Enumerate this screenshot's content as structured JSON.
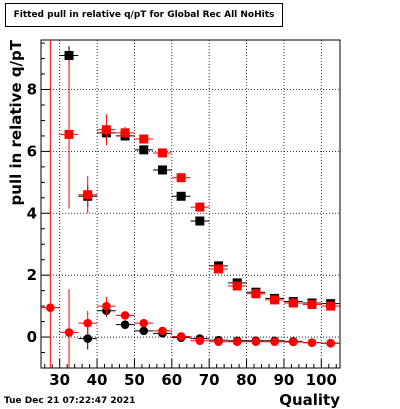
{
  "title": "Fitted pull in relative q/pT  for Global Rec All NoHits",
  "date": "Tue Dec 21 07:22:47 2021",
  "colors": {
    "black_series": "#000000",
    "red_series": "#ff0000",
    "grid": "#000000"
  },
  "chart_data": {
    "type": "scatter",
    "xlabel": "Quality",
    "ylabel": "pull in relative q/pT",
    "xlim": [
      25,
      105
    ],
    "ylim": [
      -1.0,
      9.6
    ],
    "x_ticks": [
      30,
      40,
      50,
      60,
      70,
      80,
      90,
      100
    ],
    "y_ticks": [
      0,
      2,
      4,
      6,
      8
    ],
    "grid": true,
    "marker_groups": [
      {
        "marker": "square",
        "color": "#000000",
        "points": [
          {
            "x": 32.5,
            "y": 9.1,
            "err": 0.3
          },
          {
            "x": 37.5,
            "y": 4.55,
            "err": 0.35
          },
          {
            "x": 42.5,
            "y": 6.6,
            "err": 0.25
          },
          {
            "x": 47.5,
            "y": 6.5,
            "err": 0.15
          },
          {
            "x": 52.5,
            "y": 6.05,
            "err": 0.1
          },
          {
            "x": 57.5,
            "y": 5.4,
            "err": 0.1
          },
          {
            "x": 62.5,
            "y": 4.55,
            "err": 0.1
          },
          {
            "x": 67.5,
            "y": 3.75,
            "err": 0.1
          },
          {
            "x": 72.5,
            "y": 2.3,
            "err": 0.08
          },
          {
            "x": 77.5,
            "y": 1.75,
            "err": 0.06
          },
          {
            "x": 82.5,
            "y": 1.45,
            "err": 0.05
          },
          {
            "x": 87.5,
            "y": 1.25,
            "err": 0.05
          },
          {
            "x": 92.5,
            "y": 1.15,
            "err": 0.05
          },
          {
            "x": 97.5,
            "y": 1.1,
            "err": 0.05
          },
          {
            "x": 102.5,
            "y": 1.08,
            "err": 0.05
          }
        ]
      },
      {
        "marker": "square",
        "color": "#ff0000",
        "points": [
          {
            "x": 32.5,
            "y": 6.55,
            "err": 2.4
          },
          {
            "x": 37.5,
            "y": 4.6,
            "err": 0.6
          },
          {
            "x": 42.5,
            "y": 6.7,
            "err": 0.5
          },
          {
            "x": 47.5,
            "y": 6.6,
            "err": 0.2
          },
          {
            "x": 52.5,
            "y": 6.4,
            "err": 0.12
          },
          {
            "x": 57.5,
            "y": 5.95,
            "err": 0.1
          },
          {
            "x": 62.5,
            "y": 5.15,
            "err": 0.1
          },
          {
            "x": 67.5,
            "y": 4.2,
            "err": 0.1
          },
          {
            "x": 72.5,
            "y": 2.2,
            "err": 0.08
          },
          {
            "x": 77.5,
            "y": 1.65,
            "err": 0.06
          },
          {
            "x": 82.5,
            "y": 1.4,
            "err": 0.05
          },
          {
            "x": 87.5,
            "y": 1.2,
            "err": 0.05
          },
          {
            "x": 92.5,
            "y": 1.1,
            "err": 0.05
          },
          {
            "x": 97.5,
            "y": 1.05,
            "err": 0.05
          },
          {
            "x": 102.5,
            "y": 1.0,
            "err": 0.05
          }
        ]
      },
      {
        "marker": "circle",
        "color": "#000000",
        "points": [
          {
            "x": 37.5,
            "y": -0.05,
            "err": 0.35
          },
          {
            "x": 42.5,
            "y": 0.85,
            "err": 0.2
          },
          {
            "x": 47.5,
            "y": 0.4,
            "err": 0.1
          },
          {
            "x": 52.5,
            "y": 0.2,
            "err": 0.06
          },
          {
            "x": 57.5,
            "y": 0.12,
            "err": 0.05
          },
          {
            "x": 62.5,
            "y": -0.02,
            "err": 0.04
          },
          {
            "x": 67.5,
            "y": -0.05,
            "err": 0.04
          },
          {
            "x": 72.5,
            "y": -0.1,
            "err": 0.03
          },
          {
            "x": 77.5,
            "y": -0.12,
            "err": 0.03
          },
          {
            "x": 82.5,
            "y": -0.12,
            "err": 0.03
          },
          {
            "x": 87.5,
            "y": -0.12,
            "err": 0.03
          },
          {
            "x": 92.5,
            "y": -0.14,
            "err": 0.03
          },
          {
            "x": 97.5,
            "y": -0.18,
            "err": 0.03
          },
          {
            "x": 102.5,
            "y": -0.2,
            "err": 0.03
          }
        ]
      },
      {
        "marker": "circle",
        "color": "#ff0000",
        "points": [
          {
            "x": 27.5,
            "y": 0.95,
            "err": 9.6
          },
          {
            "x": 32.5,
            "y": 0.15,
            "err": 1.4
          },
          {
            "x": 37.5,
            "y": 0.45,
            "err": 0.4
          },
          {
            "x": 42.5,
            "y": 1.0,
            "err": 0.3
          },
          {
            "x": 47.5,
            "y": 0.7,
            "err": 0.1
          },
          {
            "x": 52.5,
            "y": 0.45,
            "err": 0.06
          },
          {
            "x": 57.5,
            "y": 0.2,
            "err": 0.05
          },
          {
            "x": 62.5,
            "y": 0.02,
            "err": 0.04
          },
          {
            "x": 67.5,
            "y": -0.12,
            "err": 0.04
          },
          {
            "x": 72.5,
            "y": -0.15,
            "err": 0.03
          },
          {
            "x": 77.5,
            "y": -0.15,
            "err": 0.03
          },
          {
            "x": 82.5,
            "y": -0.15,
            "err": 0.03
          },
          {
            "x": 87.5,
            "y": -0.15,
            "err": 0.03
          },
          {
            "x": 92.5,
            "y": -0.16,
            "err": 0.03
          },
          {
            "x": 97.5,
            "y": -0.18,
            "err": 0.03
          },
          {
            "x": 102.5,
            "y": -0.2,
            "err": 0.03
          }
        ]
      }
    ]
  }
}
